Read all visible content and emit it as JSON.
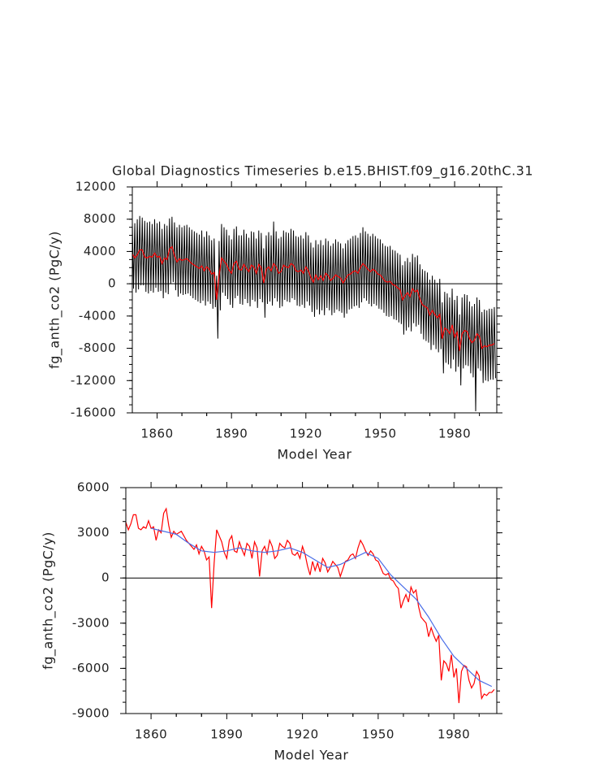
{
  "chart_data": [
    {
      "type": "line",
      "title": "Global Diagnostics Timeseries b.e15.BHIST.f09_g16.20thC.31",
      "ylabel": "fg_anth_co2 (PgC/y)",
      "xlabel": "Model Year",
      "x": [
        1850,
        1851,
        1852,
        1853,
        1854,
        1855,
        1856,
        1857,
        1858,
        1859,
        1860,
        1861,
        1862,
        1863,
        1864,
        1865,
        1866,
        1867,
        1868,
        1869,
        1870,
        1871,
        1872,
        1873,
        1874,
        1875,
        1876,
        1877,
        1878,
        1879,
        1880,
        1881,
        1882,
        1883,
        1884,
        1885,
        1886,
        1887,
        1888,
        1889,
        1890,
        1891,
        1892,
        1893,
        1894,
        1895,
        1896,
        1897,
        1898,
        1899,
        1900,
        1901,
        1902,
        1903,
        1904,
        1905,
        1906,
        1907,
        1908,
        1909,
        1910,
        1911,
        1912,
        1913,
        1914,
        1915,
        1916,
        1917,
        1918,
        1919,
        1920,
        1921,
        1922,
        1923,
        1924,
        1925,
        1926,
        1927,
        1928,
        1929,
        1930,
        1931,
        1932,
        1933,
        1934,
        1935,
        1936,
        1937,
        1938,
        1939,
        1940,
        1941,
        1942,
        1943,
        1944,
        1945,
        1946,
        1947,
        1948,
        1949,
        1950,
        1951,
        1952,
        1953,
        1954,
        1955,
        1956,
        1957,
        1958,
        1959,
        1960,
        1961,
        1962,
        1963,
        1964,
        1965,
        1966,
        1967,
        1968,
        1969,
        1970,
        1971,
        1972,
        1973,
        1974,
        1975,
        1976,
        1977,
        1978,
        1979,
        1980,
        1981,
        1982,
        1983,
        1984,
        1985,
        1986,
        1987,
        1988,
        1989,
        1990,
        1991,
        1992,
        1993,
        1994,
        1995,
        1996
      ],
      "series": [
        {
          "color": "#000000",
          "high": [
            7600,
            7500,
            8000,
            8400,
            8200,
            7800,
            7600,
            7700,
            7400,
            8000,
            7500,
            7700,
            6800,
            7400,
            7200,
            8100,
            8300,
            7600,
            7000,
            7300,
            7000,
            7200,
            7300,
            7000,
            6700,
            6500,
            6300,
            6100,
            6600,
            5800,
            6500,
            6000,
            5400,
            5600,
            1000,
            5300,
            7400,
            7000,
            6700,
            6000,
            5500,
            6800,
            7100,
            6000,
            6000,
            6700,
            6200,
            5700,
            6500,
            6400,
            5600,
            6600,
            6300,
            4400,
            6000,
            6400,
            6000,
            7700,
            6500,
            5600,
            5800,
            6600,
            6400,
            6300,
            6800,
            6600,
            5900,
            5800,
            6000,
            5600,
            6400,
            6000,
            5100,
            4500,
            5400,
            4900,
            5400,
            4800,
            5600,
            5300,
            4700,
            5000,
            5500,
            5200,
            5000,
            4400,
            5000,
            5400,
            5600,
            5900,
            6000,
            5700,
            6300,
            7000,
            6500,
            6200,
            5900,
            6200,
            5900,
            5600,
            5500,
            5000,
            4700,
            4600,
            4700,
            4200,
            4100,
            3800,
            3600,
            2300,
            2800,
            3200,
            2700,
            3700,
            3300,
            3500,
            2400,
            1800,
            1600,
            1400,
            500,
            1000,
            500,
            100,
            600,
            -2300,
            -1000,
            -1200,
            -1700,
            -600,
            -2000,
            -1500,
            -3800,
            -1700,
            -1300,
            -1400,
            -2200,
            -2800,
            -2500,
            -1700,
            -2000,
            -3500,
            -3200,
            -3300,
            -3100,
            -3100,
            -2900
          ],
          "low": [
            -600,
            -1100,
            -700,
            -200,
            -200,
            -1000,
            -1200,
            -900,
            -1100,
            -500,
            -1000,
            -900,
            -1800,
            -1100,
            -1300,
            0,
            200,
            -800,
            -1600,
            -1200,
            -1400,
            -1300,
            -1200,
            -1500,
            -1800,
            -2000,
            -2200,
            -2400,
            -2100,
            -2700,
            -2200,
            -2500,
            -3100,
            -2900,
            -6800,
            -3300,
            -1100,
            -1500,
            -1900,
            -2600,
            -3000,
            -1800,
            -1500,
            -2500,
            -2600,
            -1900,
            -2400,
            -2800,
            -2000,
            -2200,
            -3000,
            -1900,
            -2300,
            -4200,
            -2500,
            -2200,
            -2700,
            -1800,
            -2200,
            -3000,
            -2800,
            -2000,
            -2200,
            -2300,
            -1800,
            -2000,
            -2700,
            -2800,
            -2600,
            -3000,
            -2200,
            -2700,
            -3500,
            -4100,
            -3200,
            -3800,
            -3300,
            -3900,
            -3000,
            -3300,
            -3900,
            -3600,
            -3200,
            -3400,
            -3600,
            -4200,
            -3700,
            -3200,
            -3100,
            -2800,
            -2700,
            -3000,
            -2300,
            -1800,
            -2100,
            -2500,
            -2800,
            -2500,
            -2700,
            -3100,
            -3200,
            -3600,
            -4000,
            -4100,
            -4000,
            -4400,
            -4500,
            -4800,
            -5000,
            -6300,
            -5800,
            -5400,
            -5900,
            -4900,
            -5300,
            -5100,
            -6200,
            -6900,
            -7100,
            -7300,
            -8200,
            -7600,
            -8100,
            -8500,
            -8100,
            -11100,
            -9800,
            -10000,
            -10500,
            -9400,
            -10900,
            -10300,
            -12600,
            -10500,
            -10100,
            -10200,
            -11100,
            -11600,
            -15800,
            -10500,
            -10800,
            -12300,
            -12000,
            -12100,
            -11900,
            -11900,
            -11700
          ]
        },
        {
          "color": "#ff0000",
          "values": [
            3700,
            3200,
            3600,
            4200,
            4200,
            3300,
            3200,
            3400,
            3300,
            3800,
            3300,
            3400,
            2500,
            3200,
            3000,
            4300,
            4600,
            3500,
            2700,
            3100,
            2900,
            3000,
            3100,
            2800,
            2500,
            2300,
            2100,
            1900,
            2200,
            1600,
            2100,
            1800,
            1200,
            1400,
            -2000,
            1000,
            3200,
            2800,
            2400,
            1700,
            1300,
            2500,
            2800,
            1800,
            1700,
            2400,
            1900,
            1500,
            2300,
            2100,
            1300,
            2400,
            2000,
            100,
            1800,
            2100,
            1600,
            2500,
            2100,
            1300,
            1500,
            2300,
            2100,
            2000,
            2500,
            2300,
            1600,
            1500,
            1700,
            1300,
            2100,
            1600,
            800,
            200,
            1100,
            500,
            1000,
            400,
            1300,
            1000,
            400,
            700,
            1100,
            900,
            700,
            100,
            600,
            1100,
            1200,
            1500,
            1600,
            1300,
            2000,
            2500,
            2200,
            1800,
            1500,
            1800,
            1600,
            1200,
            1100,
            700,
            300,
            200,
            300,
            -100,
            -200,
            -500,
            -700,
            -2000,
            -1500,
            -1100,
            -1600,
            -600,
            -1000,
            -800,
            -1900,
            -2600,
            -2800,
            -3000,
            -3900,
            -3300,
            -3800,
            -4200,
            -3800,
            -6800,
            -5500,
            -5700,
            -6200,
            -5100,
            -6600,
            -6000,
            -8300,
            -6200,
            -5800,
            -5900,
            -6800,
            -7300,
            -7000,
            -6200,
            -6500,
            -8000,
            -7700,
            -7800,
            -7600,
            -7600,
            -7400
          ]
        }
      ],
      "xlim": [
        1850,
        1997
      ],
      "xticks": [
        1860,
        1890,
        1920,
        1950,
        1980
      ],
      "ylim": [
        -16000,
        12000
      ],
      "yticks": [
        -16000,
        -12000,
        -8000,
        -4000,
        0,
        4000,
        8000,
        12000
      ],
      "reference_line": 0
    },
    {
      "type": "line",
      "ylabel": "fg_anth_co2 (PgC/y)",
      "xlabel": "Model Year",
      "x": [
        1850,
        1851,
        1852,
        1853,
        1854,
        1855,
        1856,
        1857,
        1858,
        1859,
        1860,
        1861,
        1862,
        1863,
        1864,
        1865,
        1866,
        1867,
        1868,
        1869,
        1870,
        1871,
        1872,
        1873,
        1874,
        1875,
        1876,
        1877,
        1878,
        1879,
        1880,
        1881,
        1882,
        1883,
        1884,
        1885,
        1886,
        1887,
        1888,
        1889,
        1890,
        1891,
        1892,
        1893,
        1894,
        1895,
        1896,
        1897,
        1898,
        1899,
        1900,
        1901,
        1902,
        1903,
        1904,
        1905,
        1906,
        1907,
        1908,
        1909,
        1910,
        1911,
        1912,
        1913,
        1914,
        1915,
        1916,
        1917,
        1918,
        1919,
        1920,
        1921,
        1922,
        1923,
        1924,
        1925,
        1926,
        1927,
        1928,
        1929,
        1930,
        1931,
        1932,
        1933,
        1934,
        1935,
        1936,
        1937,
        1938,
        1939,
        1940,
        1941,
        1942,
        1943,
        1944,
        1945,
        1946,
        1947,
        1948,
        1949,
        1950,
        1951,
        1952,
        1953,
        1954,
        1955,
        1956,
        1957,
        1958,
        1959,
        1960,
        1961,
        1962,
        1963,
        1964,
        1965,
        1966,
        1967,
        1968,
        1969,
        1970,
        1971,
        1972,
        1973,
        1974,
        1975,
        1976,
        1977,
        1978,
        1979,
        1980,
        1981,
        1982,
        1983,
        1984,
        1985,
        1986,
        1987,
        1988,
        1989,
        1990,
        1991,
        1992,
        1993,
        1994,
        1995,
        1996
      ],
      "series": [
        {
          "color": "#ff0000",
          "values": [
            3700,
            3200,
            3600,
            4200,
            4200,
            3300,
            3200,
            3400,
            3300,
            3800,
            3300,
            3400,
            2500,
            3200,
            3000,
            4300,
            4600,
            3500,
            2700,
            3100,
            2900,
            3000,
            3100,
            2800,
            2500,
            2300,
            2100,
            1900,
            2200,
            1600,
            2100,
            1800,
            1200,
            1400,
            -2000,
            1000,
            3200,
            2800,
            2400,
            1700,
            1300,
            2500,
            2800,
            1800,
            1700,
            2400,
            1900,
            1500,
            2300,
            2100,
            1300,
            2400,
            2000,
            100,
            1800,
            2100,
            1600,
            2500,
            2100,
            1300,
            1500,
            2300,
            2100,
            2000,
            2500,
            2300,
            1600,
            1500,
            1700,
            1300,
            2100,
            1600,
            800,
            200,
            1100,
            500,
            1000,
            400,
            1300,
            1000,
            400,
            700,
            1100,
            900,
            700,
            100,
            600,
            1100,
            1200,
            1500,
            1600,
            1300,
            2000,
            2500,
            2200,
            1800,
            1500,
            1800,
            1600,
            1200,
            1100,
            700,
            300,
            200,
            300,
            -100,
            -200,
            -500,
            -700,
            -2000,
            -1500,
            -1100,
            -1600,
            -600,
            -1000,
            -800,
            -1900,
            -2600,
            -2800,
            -3000,
            -3900,
            -3300,
            -3800,
            -4200,
            -3800,
            -6800,
            -5500,
            -5700,
            -6200,
            -5100,
            -6600,
            -6000,
            -8300,
            -6200,
            -5800,
            -5900,
            -6800,
            -7300,
            -7000,
            -6200,
            -6500,
            -8000,
            -7700,
            -7800,
            -7600,
            -7600,
            -7400
          ]
        },
        {
          "color": "#4a6ee8",
          "x": [
            1860,
            1865,
            1870,
            1875,
            1880,
            1885,
            1890,
            1895,
            1900,
            1905,
            1910,
            1915,
            1920,
            1925,
            1930,
            1935,
            1940,
            1945,
            1950,
            1955,
            1960,
            1965,
            1970,
            1975,
            1980,
            1985,
            1990,
            1995
          ],
          "values": [
            3300,
            3100,
            2900,
            2300,
            1800,
            1700,
            1800,
            2000,
            1800,
            1700,
            1800,
            2000,
            1700,
            1200,
            700,
            900,
            1300,
            1700,
            1300,
            200,
            -600,
            -1400,
            -2600,
            -4000,
            -5200,
            -6000,
            -6800,
            -7200
          ]
        }
      ],
      "xlim": [
        1850,
        1997
      ],
      "xticks": [
        1860,
        1890,
        1920,
        1950,
        1980
      ],
      "ylim": [
        -9000,
        6000
      ],
      "yticks": [
        -9000,
        -6000,
        -3000,
        0,
        3000,
        6000
      ],
      "reference_line": 0
    }
  ]
}
